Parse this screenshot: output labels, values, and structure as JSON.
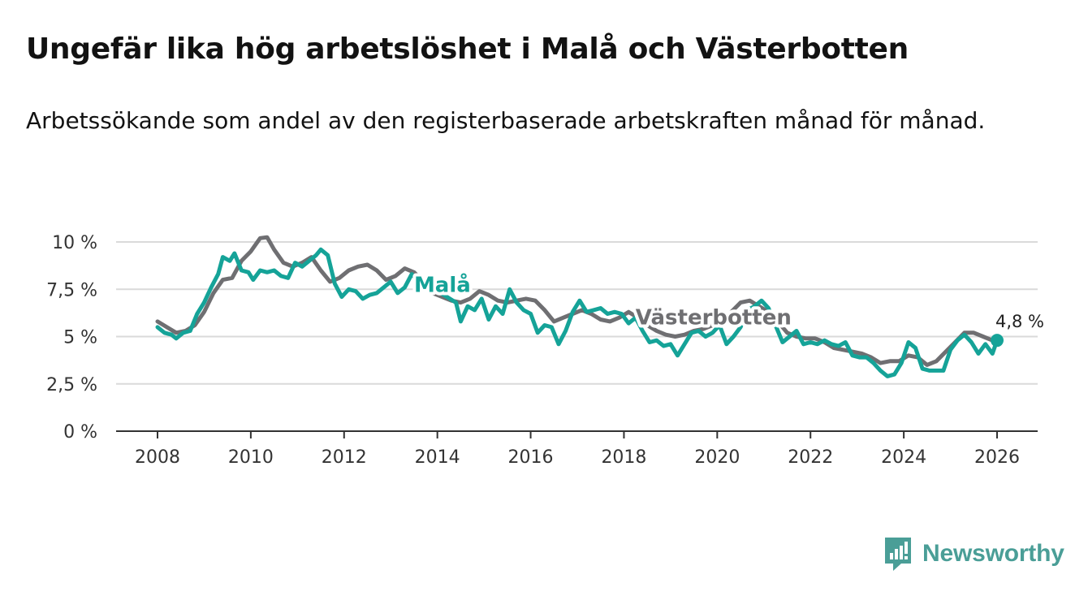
{
  "chart_data": {
    "type": "line",
    "title": "Ungefär lika hög arbetslöshet i Malå och Västerbotten",
    "subtitle": "Arbetssökande som andel av den registerbaserade arbetskraften månad för månad.",
    "xlabel": "",
    "ylabel": "",
    "xlim": [
      2008,
      2026
    ],
    "ylim": [
      0,
      10
    ],
    "x_ticks": [
      "2008",
      "2010",
      "2012",
      "2014",
      "2016",
      "2018",
      "2020",
      "2022",
      "2024",
      "2026"
    ],
    "y_ticks": [
      {
        "value": 0,
        "label": "0 %"
      },
      {
        "value": 2.5,
        "label": "2,5 %"
      },
      {
        "value": 5,
        "label": "5 %"
      },
      {
        "value": 7.5,
        "label": "7,5 %"
      },
      {
        "value": 10,
        "label": "10 %"
      }
    ],
    "grid": true,
    "last_value_label": "4,8 %",
    "series": [
      {
        "name": "Västerbotten",
        "color": "#6f6f72",
        "points": [
          [
            2008.0,
            5.8
          ],
          [
            2008.2,
            5.5
          ],
          [
            2008.4,
            5.2
          ],
          [
            2008.6,
            5.3
          ],
          [
            2008.8,
            5.6
          ],
          [
            2009.0,
            6.3
          ],
          [
            2009.2,
            7.3
          ],
          [
            2009.4,
            8.0
          ],
          [
            2009.6,
            8.1
          ],
          [
            2009.8,
            9.0
          ],
          [
            2010.0,
            9.5
          ],
          [
            2010.2,
            10.2
          ],
          [
            2010.35,
            10.25
          ],
          [
            2010.5,
            9.6
          ],
          [
            2010.7,
            8.9
          ],
          [
            2010.9,
            8.7
          ],
          [
            2011.1,
            8.9
          ],
          [
            2011.3,
            9.2
          ],
          [
            2011.5,
            8.5
          ],
          [
            2011.7,
            7.9
          ],
          [
            2011.9,
            8.1
          ],
          [
            2012.1,
            8.5
          ],
          [
            2012.3,
            8.7
          ],
          [
            2012.5,
            8.8
          ],
          [
            2012.7,
            8.5
          ],
          [
            2012.9,
            8.0
          ],
          [
            2013.1,
            8.2
          ],
          [
            2013.3,
            8.6
          ],
          [
            2013.5,
            8.4
          ],
          [
            2013.7,
            7.9
          ],
          [
            2013.9,
            7.3
          ],
          [
            2014.1,
            7.1
          ],
          [
            2014.3,
            6.9
          ],
          [
            2014.5,
            6.8
          ],
          [
            2014.7,
            7.0
          ],
          [
            2014.9,
            7.4
          ],
          [
            2015.1,
            7.2
          ],
          [
            2015.3,
            6.9
          ],
          [
            2015.5,
            6.8
          ],
          [
            2015.7,
            6.9
          ],
          [
            2015.9,
            7.0
          ],
          [
            2016.1,
            6.9
          ],
          [
            2016.3,
            6.4
          ],
          [
            2016.5,
            5.8
          ],
          [
            2016.7,
            6.0
          ],
          [
            2016.9,
            6.2
          ],
          [
            2017.1,
            6.4
          ],
          [
            2017.3,
            6.2
          ],
          [
            2017.5,
            5.9
          ],
          [
            2017.7,
            5.8
          ],
          [
            2017.9,
            6.0
          ],
          [
            2018.1,
            6.3
          ],
          [
            2018.3,
            6.0
          ],
          [
            2018.5,
            5.6
          ],
          [
            2018.7,
            5.3
          ],
          [
            2018.9,
            5.1
          ],
          [
            2019.1,
            5.0
          ],
          [
            2019.3,
            5.1
          ],
          [
            2019.5,
            5.3
          ],
          [
            2019.7,
            5.4
          ],
          [
            2019.9,
            5.6
          ],
          [
            2020.1,
            5.8
          ],
          [
            2020.3,
            6.3
          ],
          [
            2020.5,
            6.8
          ],
          [
            2020.7,
            6.9
          ],
          [
            2020.9,
            6.6
          ],
          [
            2021.1,
            6.3
          ],
          [
            2021.3,
            5.8
          ],
          [
            2021.5,
            5.2
          ],
          [
            2021.7,
            5.0
          ],
          [
            2021.9,
            4.9
          ],
          [
            2022.1,
            4.9
          ],
          [
            2022.3,
            4.7
          ],
          [
            2022.5,
            4.4
          ],
          [
            2022.7,
            4.3
          ],
          [
            2022.9,
            4.2
          ],
          [
            2023.1,
            4.1
          ],
          [
            2023.3,
            3.9
          ],
          [
            2023.5,
            3.6
          ],
          [
            2023.7,
            3.7
          ],
          [
            2023.9,
            3.7
          ],
          [
            2024.1,
            4.0
          ],
          [
            2024.3,
            3.9
          ],
          [
            2024.5,
            3.5
          ],
          [
            2024.7,
            3.7
          ],
          [
            2024.9,
            4.2
          ],
          [
            2025.1,
            4.7
          ],
          [
            2025.3,
            5.2
          ],
          [
            2025.5,
            5.2
          ],
          [
            2025.7,
            5.0
          ],
          [
            2025.9,
            4.8
          ],
          [
            2026.0,
            4.8
          ]
        ]
      },
      {
        "name": "Malå",
        "color": "#15a398",
        "points": [
          [
            2008.0,
            5.5
          ],
          [
            2008.15,
            5.2
          ],
          [
            2008.3,
            5.1
          ],
          [
            2008.4,
            4.9
          ],
          [
            2008.55,
            5.2
          ],
          [
            2008.7,
            5.3
          ],
          [
            2008.85,
            6.2
          ],
          [
            2009.0,
            6.8
          ],
          [
            2009.15,
            7.6
          ],
          [
            2009.3,
            8.3
          ],
          [
            2009.4,
            9.2
          ],
          [
            2009.55,
            9.0
          ],
          [
            2009.65,
            9.4
          ],
          [
            2009.8,
            8.5
          ],
          [
            2009.95,
            8.4
          ],
          [
            2010.05,
            8.0
          ],
          [
            2010.2,
            8.5
          ],
          [
            2010.35,
            8.4
          ],
          [
            2010.5,
            8.5
          ],
          [
            2010.65,
            8.2
          ],
          [
            2010.8,
            8.1
          ],
          [
            2010.95,
            8.9
          ],
          [
            2011.1,
            8.7
          ],
          [
            2011.25,
            9.0
          ],
          [
            2011.4,
            9.3
          ],
          [
            2011.5,
            9.6
          ],
          [
            2011.65,
            9.3
          ],
          [
            2011.8,
            7.8
          ],
          [
            2011.95,
            7.1
          ],
          [
            2012.1,
            7.5
          ],
          [
            2012.25,
            7.4
          ],
          [
            2012.4,
            7.0
          ],
          [
            2012.55,
            7.2
          ],
          [
            2012.7,
            7.3
          ],
          [
            2012.85,
            7.6
          ],
          [
            2013.0,
            7.9
          ],
          [
            2013.15,
            7.3
          ],
          [
            2013.3,
            7.6
          ],
          [
            2013.45,
            8.3
          ],
          [
            2013.6,
            7.9
          ],
          [
            2013.75,
            7.8
          ],
          [
            2014.4,
            6.8
          ],
          [
            2014.5,
            5.8
          ],
          [
            2014.65,
            6.6
          ],
          [
            2014.8,
            6.4
          ],
          [
            2014.95,
            7.0
          ],
          [
            2015.1,
            5.9
          ],
          [
            2015.25,
            6.6
          ],
          [
            2015.4,
            6.2
          ],
          [
            2015.55,
            7.5
          ],
          [
            2015.7,
            6.8
          ],
          [
            2015.85,
            6.4
          ],
          [
            2016.0,
            6.2
          ],
          [
            2016.15,
            5.2
          ],
          [
            2016.3,
            5.6
          ],
          [
            2016.45,
            5.5
          ],
          [
            2016.6,
            4.6
          ],
          [
            2016.75,
            5.3
          ],
          [
            2016.9,
            6.3
          ],
          [
            2017.05,
            6.9
          ],
          [
            2017.2,
            6.3
          ],
          [
            2017.35,
            6.4
          ],
          [
            2017.5,
            6.5
          ],
          [
            2017.65,
            6.2
          ],
          [
            2017.8,
            6.3
          ],
          [
            2017.95,
            6.2
          ],
          [
            2018.1,
            5.7
          ],
          [
            2018.25,
            6.0
          ],
          [
            2018.4,
            5.3
          ],
          [
            2018.55,
            4.7
          ],
          [
            2018.7,
            4.8
          ],
          [
            2018.85,
            4.5
          ],
          [
            2019.0,
            4.6
          ],
          [
            2019.15,
            4.0
          ],
          [
            2019.3,
            4.6
          ],
          [
            2019.45,
            5.2
          ],
          [
            2019.6,
            5.3
          ],
          [
            2019.75,
            5.0
          ],
          [
            2019.9,
            5.2
          ],
          [
            2020.05,
            5.6
          ],
          [
            2020.2,
            4.6
          ],
          [
            2020.35,
            5.0
          ],
          [
            2020.5,
            5.5
          ],
          [
            2020.65,
            6.4
          ],
          [
            2020.8,
            6.6
          ],
          [
            2020.95,
            6.9
          ],
          [
            2021.1,
            6.5
          ],
          [
            2021.25,
            5.6
          ],
          [
            2021.4,
            4.7
          ],
          [
            2021.55,
            5.0
          ],
          [
            2021.7,
            5.3
          ],
          [
            2021.85,
            4.6
          ],
          [
            2022.0,
            4.7
          ],
          [
            2022.15,
            4.6
          ],
          [
            2022.3,
            4.8
          ],
          [
            2022.45,
            4.6
          ],
          [
            2022.6,
            4.5
          ],
          [
            2022.75,
            4.7
          ],
          [
            2022.9,
            4.0
          ],
          [
            2023.05,
            3.9
          ],
          [
            2023.2,
            3.9
          ],
          [
            2023.35,
            3.6
          ],
          [
            2023.5,
            3.2
          ],
          [
            2023.65,
            2.9
          ],
          [
            2023.8,
            3.0
          ],
          [
            2023.95,
            3.6
          ],
          [
            2024.1,
            4.7
          ],
          [
            2024.25,
            4.4
          ],
          [
            2024.4,
            3.3
          ],
          [
            2024.55,
            3.2
          ],
          [
            2024.7,
            3.2
          ],
          [
            2024.85,
            3.2
          ],
          [
            2025.0,
            4.3
          ],
          [
            2025.15,
            4.8
          ],
          [
            2025.3,
            5.1
          ],
          [
            2025.45,
            4.7
          ],
          [
            2025.6,
            4.1
          ],
          [
            2025.75,
            4.6
          ],
          [
            2025.9,
            4.1
          ],
          [
            2026.0,
            4.8
          ]
        ]
      }
    ]
  },
  "brand": {
    "name": "Newsworthy"
  }
}
